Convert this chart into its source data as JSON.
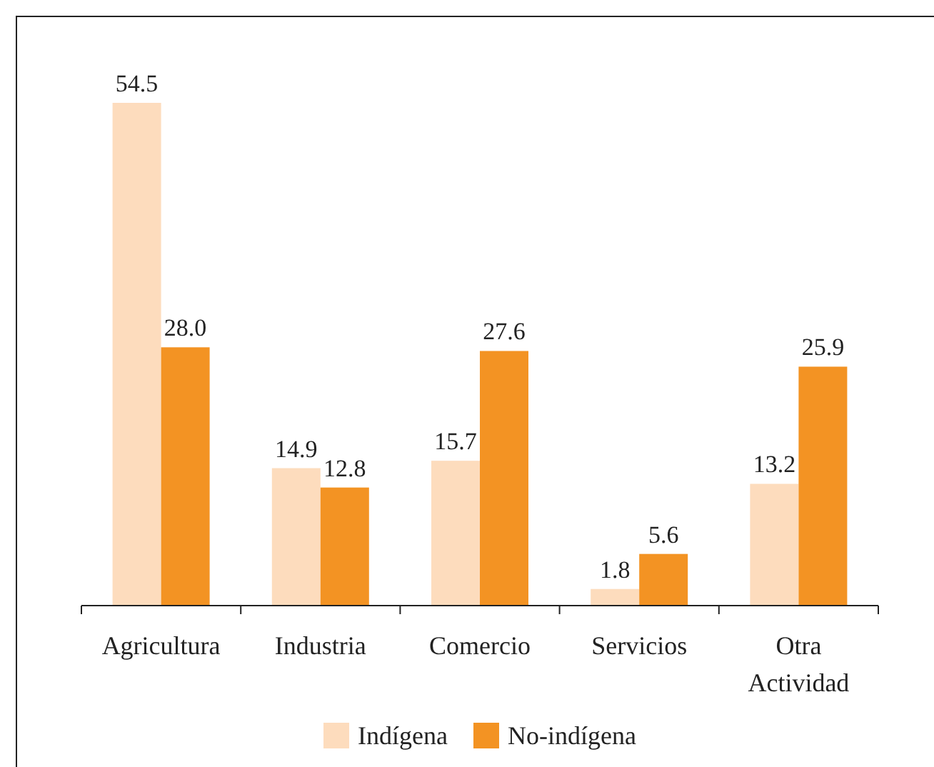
{
  "chart_data": {
    "type": "bar",
    "categories": [
      "Agricultura",
      "Industria",
      "Comercio",
      "Servicios",
      "Otra Actividad"
    ],
    "series": [
      {
        "name": "Indígena",
        "color": "#fddcbd",
        "values": [
          54.5,
          14.9,
          15.7,
          1.8,
          13.2
        ],
        "value_labels": [
          "54.5",
          "14.9",
          "15.7",
          "1.8",
          "13.2"
        ]
      },
      {
        "name": "No-indígena",
        "color": "#f39323",
        "values": [
          28.0,
          12.8,
          27.6,
          5.6,
          25.9
        ],
        "value_labels": [
          "28.0",
          "12.8",
          "27.6",
          "5.6",
          "25.9"
        ]
      }
    ],
    "legend": "bottom",
    "grid": false
  }
}
